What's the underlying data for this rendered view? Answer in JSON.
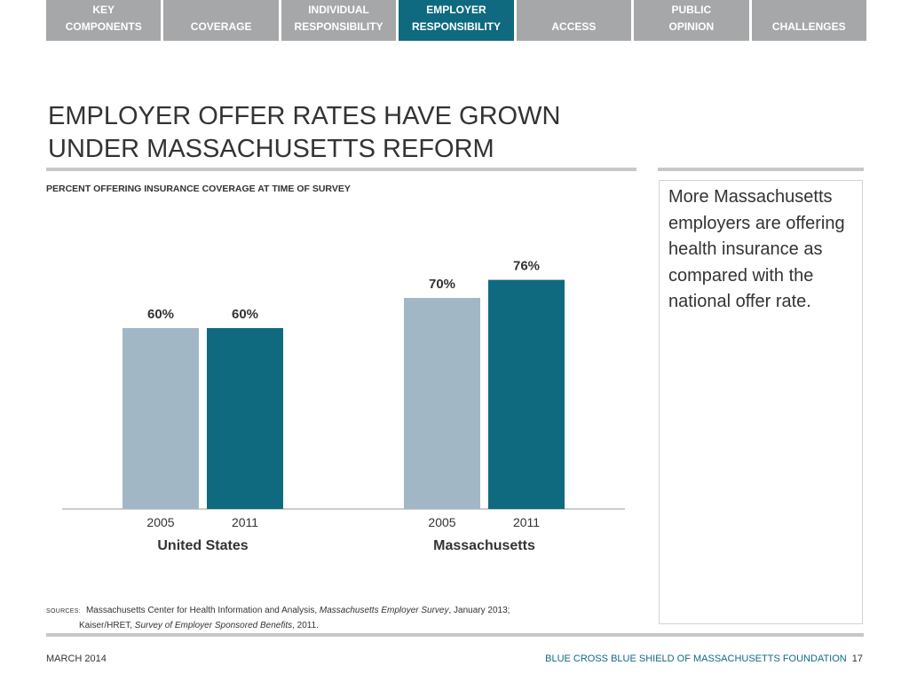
{
  "nav": {
    "tabs": [
      {
        "label": "KEY\nCOMPONENTS",
        "active": false
      },
      {
        "label": "COVERAGE",
        "active": false
      },
      {
        "label": "INDIVIDUAL\nRESPONSIBILITY",
        "active": false
      },
      {
        "label": "EMPLOYER\nRESPONSIBILITY",
        "active": true
      },
      {
        "label": "ACCESS",
        "active": false
      },
      {
        "label": "PUBLIC\nOPINION",
        "active": false
      },
      {
        "label": "CHALLENGES",
        "active": false
      }
    ]
  },
  "title_lines": [
    "EMPLOYER OFFER RATES HAVE GROWN",
    "UNDER MASSACHUSETTS REFORM"
  ],
  "chart_subtitle": "PERCENT OFFERING INSURANCE COVERAGE AT TIME OF SURVEY",
  "chart_data": {
    "type": "bar",
    "groups": [
      "United States",
      "Massachusetts"
    ],
    "categories": [
      "2005",
      "2011"
    ],
    "series": [
      {
        "values": [
          60,
          70
        ],
        "color": "#a2b7c6"
      },
      {
        "values": [
          60,
          76
        ],
        "color": "#0f6a80"
      }
    ],
    "value_labels": [
      [
        "60%",
        "60%"
      ],
      [
        "70%",
        "76%"
      ]
    ],
    "ylim": [
      0,
      100
    ],
    "grid": false
  },
  "side_text": "More Massachusetts employers are offering health insurance as compared with the national offer rate.",
  "sources": {
    "label": "SOURCES:",
    "line1_pre": "Massachusetts Center for Health Information and Analysis, ",
    "line1_italic": "Massachusetts Employer Survey",
    "line1_post": ", January 2013;",
    "line2_pre": "Kaiser/HRET, ",
    "line2_italic": "Survey of Employer Sponsored Benefits",
    "line2_post": ", 2011."
  },
  "footer": {
    "date": "MARCH 2014",
    "org": "BLUE CROSS BLUE SHIELD OF MASSACHUSETTS FOUNDATION",
    "page": "17"
  }
}
